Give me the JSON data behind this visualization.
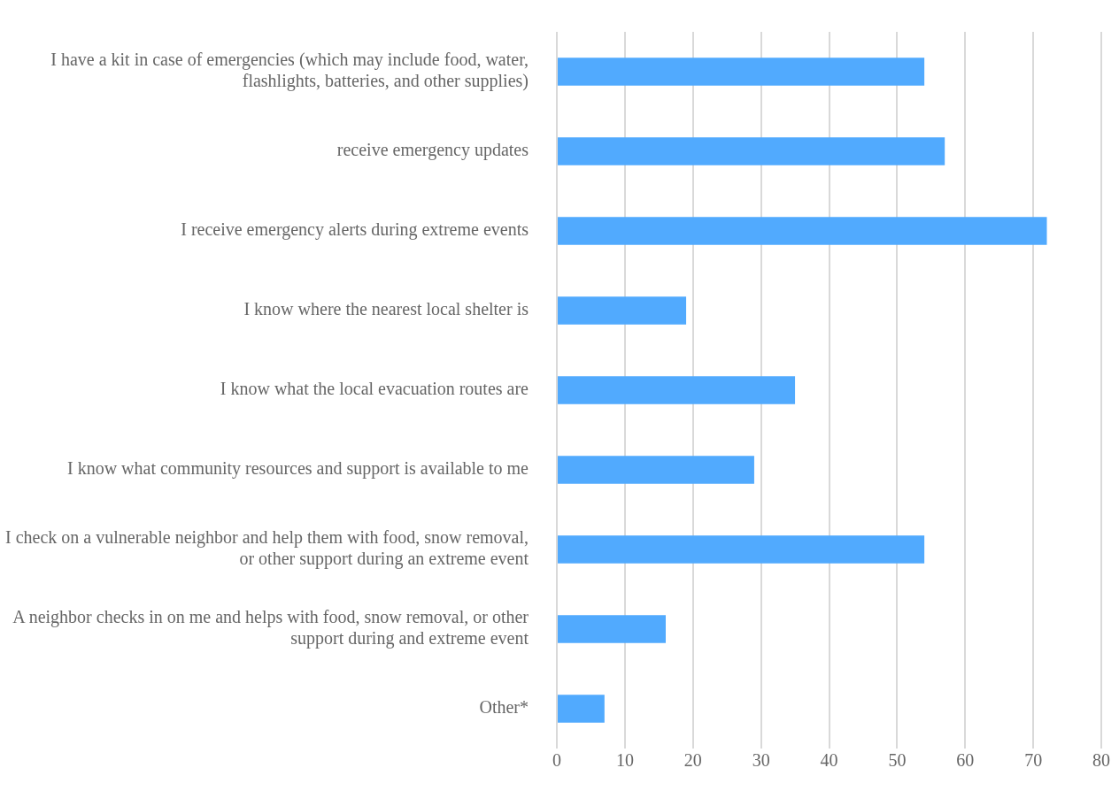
{
  "chart_data": {
    "type": "bar",
    "orientation": "horizontal",
    "categories": [
      "I have a kit in case of emergencies (which may include food, water, flashlights, batteries, and other supplies)",
      "receive emergency updates",
      "I receive emergency alerts during extreme events",
      "I know where the nearest local shelter is",
      "I know what the local evacuation routes are",
      "I know what community resources and support is available to me",
      "I check on a vulnerable neighbor and help them with food, snow removal, or other support during an extreme event",
      "A neighbor checks in on me and helps with food, snow removal, or other support during and extreme event",
      "Other*"
    ],
    "values": [
      54,
      57,
      72,
      19,
      35,
      29,
      54,
      16,
      7
    ],
    "color": "#51aafe",
    "xlim": [
      0,
      80
    ],
    "xticks": [
      0,
      10,
      20,
      30,
      40,
      50,
      60,
      70,
      80
    ],
    "grid": "x"
  }
}
